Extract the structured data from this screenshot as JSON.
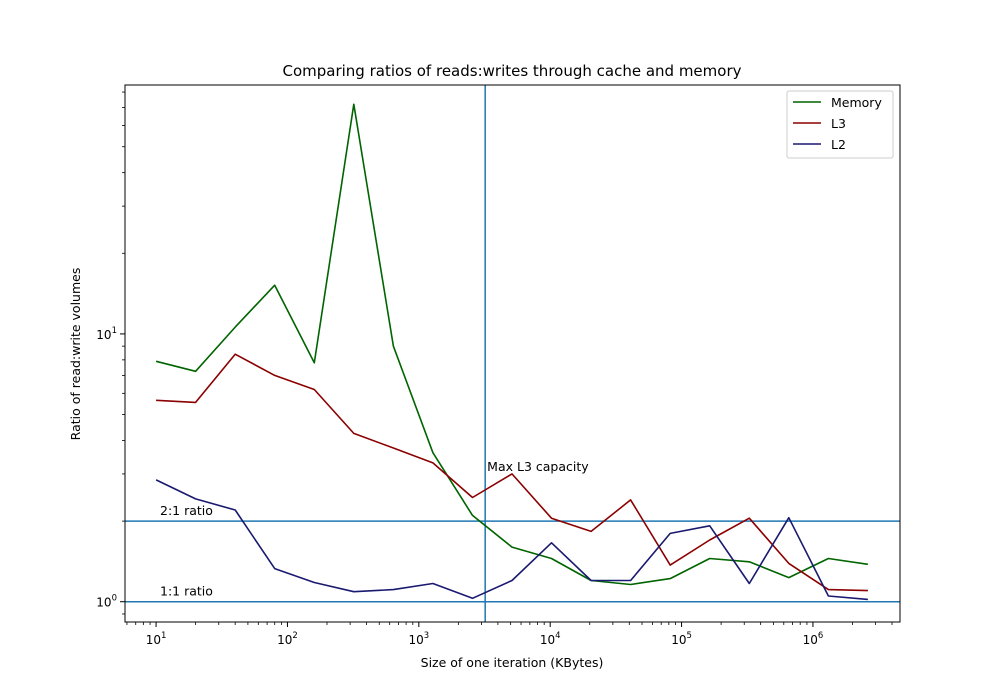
{
  "chart_data": {
    "type": "line",
    "title": "Comparing ratios of reads:writes through cache and memory",
    "xlabel": "Size of one iteration (KBytes)",
    "ylabel": "Ratio of read:write volumes",
    "xscale": "log",
    "yscale": "log",
    "xlim": [
      5.8,
      4600000
    ],
    "ylim": [
      0.84,
      85
    ],
    "x_ticks": [
      {
        "value": 10,
        "base": "10",
        "exp": "1"
      },
      {
        "value": 100,
        "base": "10",
        "exp": "2"
      },
      {
        "value": 1000,
        "base": "10",
        "exp": "3"
      },
      {
        "value": 10000,
        "base": "10",
        "exp": "4"
      },
      {
        "value": 100000,
        "base": "10",
        "exp": "5"
      },
      {
        "value": 1000000,
        "base": "10",
        "exp": "6"
      }
    ],
    "y_ticks": [
      {
        "value": 1,
        "base": "10",
        "exp": "0"
      },
      {
        "value": 10,
        "base": "10",
        "exp": "1"
      }
    ],
    "grid": false,
    "legend_position": "top-right",
    "x": [
      10,
      20,
      40,
      80,
      160,
      320,
      640,
      1280,
      2560,
      5120,
      10240,
      20480,
      40960,
      81920,
      163840,
      327680,
      655360,
      1310720,
      2621440
    ],
    "series": [
      {
        "name": "Memory",
        "color": "#006400",
        "values": [
          7.9,
          7.25,
          10.6,
          15.2,
          7.8,
          72.0,
          9.0,
          3.6,
          2.1,
          1.6,
          1.45,
          1.2,
          1.16,
          1.22,
          1.45,
          1.41,
          1.23,
          1.45,
          1.38
        ]
      },
      {
        "name": "L3",
        "color": "#8b0000",
        "values": [
          5.65,
          5.55,
          8.4,
          7.0,
          6.2,
          4.25,
          3.75,
          3.3,
          2.45,
          3.0,
          2.05,
          1.83,
          2.4,
          1.37,
          1.7,
          2.05,
          1.39,
          1.11,
          1.1
        ]
      },
      {
        "name": "L2",
        "color": "#191970",
        "values": [
          2.85,
          2.42,
          2.2,
          1.33,
          1.18,
          1.09,
          1.11,
          1.17,
          1.03,
          1.2,
          1.66,
          1.2,
          1.2,
          1.8,
          1.92,
          1.17,
          2.06,
          1.05,
          1.02
        ]
      }
    ],
    "reference_lines": {
      "color": "#1f77b4",
      "horizontal": [
        {
          "value": 2,
          "label": "2:1 ratio"
        },
        {
          "value": 1,
          "label": "1:1 ratio"
        }
      ],
      "vertical": [
        {
          "value": 3200,
          "label": "Max L3 capacity"
        }
      ]
    }
  }
}
